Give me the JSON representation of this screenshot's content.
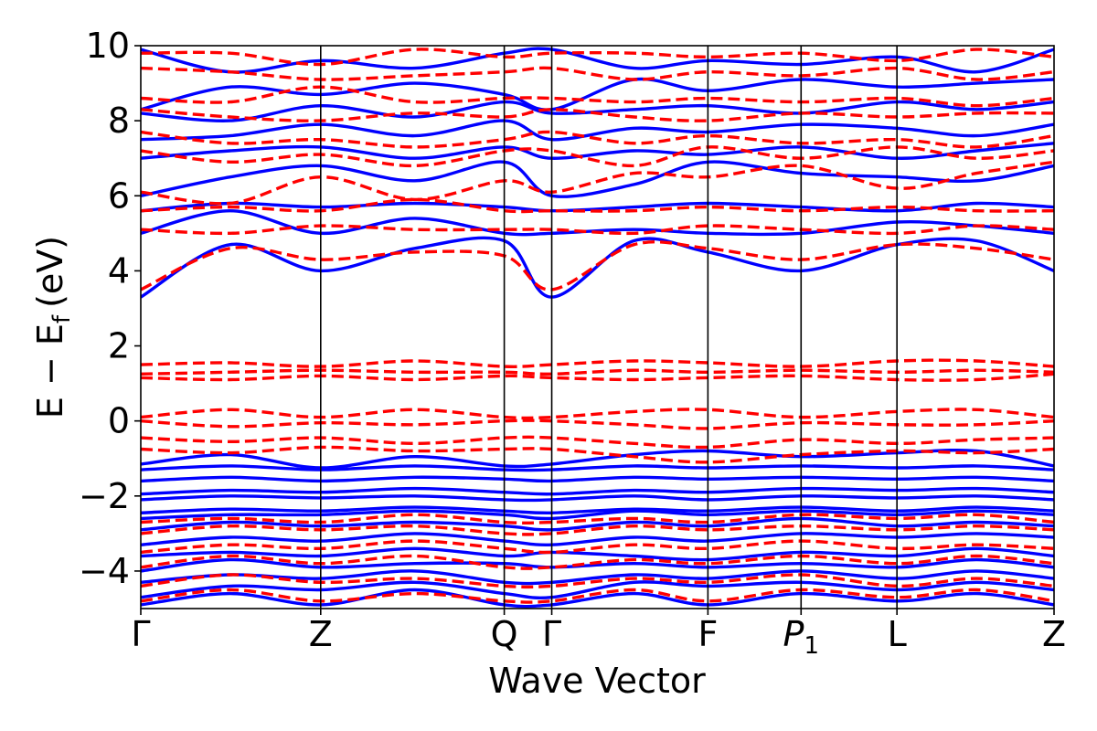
{
  "chart_data": {
    "type": "line",
    "title": "",
    "xlabel": "Wave Vector",
    "ylabel_main": "E − E",
    "ylabel_sub": "f",
    "ylabel_unit": "(eV)",
    "ylim": [
      -5,
      10
    ],
    "yticks": [
      {
        "value": 10,
        "label": "10"
      },
      {
        "value": 8,
        "label": "8"
      },
      {
        "value": 6,
        "label": "6"
      },
      {
        "value": 4,
        "label": "4"
      },
      {
        "value": 2,
        "label": "2"
      },
      {
        "value": 0,
        "label": "0"
      },
      {
        "value": -2,
        "label": "−2"
      },
      {
        "value": -4,
        "label": "−4"
      }
    ],
    "xlim": [
      0,
      1
    ],
    "kpoints": [
      {
        "label": "Γ",
        "sub": "",
        "x": 0.0
      },
      {
        "label": "Z",
        "sub": "",
        "x": 0.197
      },
      {
        "label": "Q",
        "sub": "",
        "x": 0.398
      },
      {
        "label": "Γ",
        "sub": "",
        "x": 0.45
      },
      {
        "label": "F",
        "sub": "",
        "x": 0.621
      },
      {
        "label": "P",
        "sub": "1",
        "x": 0.723
      },
      {
        "label": "L",
        "sub": "",
        "x": 0.828
      },
      {
        "label": "Z",
        "sub": "",
        "x": 1.0
      }
    ],
    "band_nodes": [
      0,
      0.098,
      0.197,
      0.3,
      0.398,
      0.45,
      0.54,
      0.621,
      0.723,
      0.828,
      0.915,
      1.0
    ],
    "grid": false,
    "legend": "none",
    "series": [
      {
        "style": "solid",
        "color": "#0000ff",
        "bands": [
          [
            -4.9,
            -4.6,
            -4.9,
            -4.5,
            -4.9,
            -4.9,
            -4.6,
            -4.9,
            -4.6,
            -4.8,
            -4.6,
            -4.9
          ],
          [
            -4.7,
            -4.4,
            -4.5,
            -4.3,
            -4.6,
            -4.7,
            -4.3,
            -4.4,
            -4.3,
            -4.5,
            -4.3,
            -4.5
          ],
          [
            -4.3,
            -4.1,
            -4.2,
            -4.0,
            -4.3,
            -4.3,
            -4.1,
            -4.2,
            -4.0,
            -4.2,
            -4.0,
            -4.2
          ],
          [
            -4.0,
            -3.7,
            -3.9,
            -3.8,
            -3.8,
            -3.9,
            -3.8,
            -3.9,
            -3.8,
            -3.9,
            -3.7,
            -3.9
          ],
          [
            -3.6,
            -3.5,
            -3.6,
            -3.4,
            -3.6,
            -3.5,
            -3.6,
            -3.7,
            -3.5,
            -3.6,
            -3.4,
            -3.6
          ],
          [
            -3.3,
            -3.1,
            -3.2,
            -3.0,
            -3.2,
            -3.3,
            -3.1,
            -3.2,
            -3.0,
            -3.1,
            -3.0,
            -3.1
          ],
          [
            -2.9,
            -2.7,
            -2.8,
            -2.7,
            -2.8,
            -2.9,
            -2.7,
            -2.8,
            -2.6,
            -2.8,
            -2.7,
            -2.8
          ],
          [
            -2.6,
            -2.5,
            -2.5,
            -2.4,
            -2.5,
            -2.6,
            -2.4,
            -2.5,
            -2.4,
            -2.5,
            -2.4,
            -2.5
          ],
          [
            -2.45,
            -2.35,
            -2.4,
            -2.3,
            -2.4,
            -2.45,
            -2.35,
            -2.4,
            -2.3,
            -2.4,
            -2.3,
            -2.4
          ],
          [
            -2.1,
            -2.0,
            -2.05,
            -2.0,
            -2.1,
            -2.1,
            -2.0,
            -2.1,
            -2.0,
            -2.05,
            -2.0,
            -2.1
          ],
          [
            -1.95,
            -1.85,
            -1.9,
            -1.8,
            -1.9,
            -1.95,
            -1.85,
            -1.9,
            -1.8,
            -1.85,
            -1.8,
            -1.9
          ],
          [
            -1.6,
            -1.5,
            -1.6,
            -1.5,
            -1.55,
            -1.6,
            -1.5,
            -1.55,
            -1.5,
            -1.55,
            -1.5,
            -1.6
          ],
          [
            -1.3,
            -1.2,
            -1.3,
            -1.2,
            -1.3,
            -1.3,
            -1.2,
            -1.25,
            -1.2,
            -1.25,
            -1.2,
            -1.3
          ],
          [
            -1.15,
            -0.9,
            -1.25,
            -0.95,
            -1.2,
            -1.15,
            -0.9,
            -0.8,
            -0.95,
            -0.85,
            -0.8,
            -1.2
          ],
          [
            3.3,
            4.7,
            4.0,
            4.6,
            4.8,
            3.3,
            4.8,
            4.5,
            4.0,
            4.7,
            4.8,
            4.0
          ],
          [
            5.0,
            5.6,
            5.0,
            5.4,
            5.0,
            5.0,
            5.1,
            5.0,
            5.0,
            5.3,
            5.2,
            5.0
          ],
          [
            5.6,
            5.8,
            5.7,
            5.8,
            5.7,
            5.6,
            5.7,
            5.8,
            5.7,
            5.6,
            5.8,
            5.7
          ],
          [
            6.0,
            6.5,
            6.8,
            6.4,
            6.9,
            6.0,
            6.3,
            6.9,
            6.6,
            6.5,
            6.4,
            6.8
          ],
          [
            7.0,
            7.2,
            7.3,
            7.0,
            7.3,
            7.0,
            7.2,
            7.1,
            7.3,
            7.0,
            7.2,
            7.4
          ],
          [
            7.5,
            7.6,
            7.9,
            7.6,
            8.0,
            7.5,
            7.8,
            7.7,
            7.9,
            7.8,
            7.6,
            7.9
          ],
          [
            8.2,
            8.0,
            8.4,
            8.1,
            8.5,
            8.2,
            8.3,
            8.4,
            8.2,
            8.5,
            8.3,
            8.5
          ],
          [
            8.3,
            8.9,
            8.7,
            9.0,
            8.7,
            8.3,
            9.1,
            8.8,
            9.1,
            8.9,
            9.0,
            9.1
          ],
          [
            9.9,
            9.3,
            9.6,
            9.4,
            9.8,
            9.9,
            9.4,
            9.6,
            9.5,
            9.7,
            9.3,
            9.9
          ]
        ]
      },
      {
        "style": "dashed",
        "color": "#ff0000",
        "bands": [
          [
            -4.8,
            -4.5,
            -4.8,
            -4.6,
            -4.8,
            -4.8,
            -4.5,
            -4.8,
            -4.5,
            -4.7,
            -4.5,
            -4.8
          ],
          [
            -4.4,
            -4.1,
            -4.3,
            -4.2,
            -4.4,
            -4.4,
            -4.2,
            -4.3,
            -4.1,
            -4.4,
            -4.2,
            -4.4
          ],
          [
            -3.9,
            -3.6,
            -3.8,
            -3.6,
            -3.9,
            -3.9,
            -3.7,
            -3.8,
            -3.6,
            -3.8,
            -3.6,
            -3.8
          ],
          [
            -3.5,
            -3.3,
            -3.4,
            -3.2,
            -3.4,
            -3.5,
            -3.3,
            -3.4,
            -3.2,
            -3.4,
            -3.3,
            -3.4
          ],
          [
            -3.0,
            -2.8,
            -2.9,
            -2.8,
            -3.0,
            -3.0,
            -2.8,
            -2.9,
            -2.8,
            -2.9,
            -2.8,
            -2.9
          ],
          [
            -2.7,
            -2.6,
            -2.7,
            -2.5,
            -2.7,
            -2.7,
            -2.6,
            -2.7,
            -2.5,
            -2.6,
            -2.5,
            -2.7
          ],
          [
            -0.75,
            -0.85,
            -0.7,
            -0.8,
            -0.75,
            -0.75,
            -0.95,
            -1.1,
            -0.9,
            -0.8,
            -0.85,
            -0.75
          ],
          [
            -0.45,
            -0.55,
            -0.45,
            -0.6,
            -0.45,
            -0.45,
            -0.6,
            -0.7,
            -0.5,
            -0.6,
            -0.5,
            -0.45
          ],
          [
            0.0,
            -0.15,
            -0.05,
            -0.1,
            0.0,
            0.0,
            -0.1,
            -0.2,
            -0.05,
            -0.1,
            -0.1,
            0.0
          ],
          [
            0.1,
            0.3,
            0.1,
            0.3,
            0.1,
            0.1,
            0.25,
            0.3,
            0.1,
            0.25,
            0.3,
            0.1
          ],
          [
            1.15,
            1.1,
            1.2,
            1.1,
            1.2,
            1.15,
            1.1,
            1.15,
            1.2,
            1.1,
            1.1,
            1.25
          ],
          [
            1.25,
            1.3,
            1.35,
            1.3,
            1.3,
            1.25,
            1.35,
            1.3,
            1.35,
            1.3,
            1.35,
            1.3
          ],
          [
            1.5,
            1.55,
            1.45,
            1.6,
            1.45,
            1.5,
            1.6,
            1.55,
            1.45,
            1.6,
            1.6,
            1.45
          ],
          [
            3.5,
            4.6,
            4.3,
            4.5,
            4.4,
            3.5,
            4.7,
            4.6,
            4.3,
            4.7,
            4.6,
            4.3
          ],
          [
            5.1,
            5.0,
            5.2,
            5.1,
            5.1,
            5.1,
            5.0,
            5.2,
            5.1,
            5.0,
            5.2,
            5.1
          ],
          [
            5.6,
            5.7,
            5.6,
            5.9,
            5.6,
            5.6,
            5.6,
            5.7,
            5.6,
            5.7,
            5.6,
            5.6
          ],
          [
            6.1,
            5.8,
            6.5,
            5.9,
            6.4,
            6.1,
            6.6,
            6.5,
            6.8,
            6.2,
            6.6,
            6.9
          ],
          [
            7.2,
            6.9,
            7.1,
            6.8,
            7.2,
            7.2,
            6.8,
            7.3,
            7.0,
            7.3,
            7.0,
            7.2
          ],
          [
            7.7,
            7.4,
            7.5,
            7.3,
            7.5,
            7.7,
            7.4,
            7.6,
            7.4,
            7.5,
            7.3,
            7.6
          ],
          [
            8.3,
            8.1,
            8.0,
            8.2,
            8.1,
            8.3,
            8.1,
            8.0,
            8.2,
            8.1,
            8.2,
            8.2
          ],
          [
            8.6,
            8.5,
            8.9,
            8.5,
            8.6,
            8.6,
            8.5,
            8.6,
            8.5,
            8.6,
            8.4,
            8.6
          ],
          [
            9.4,
            9.3,
            9.1,
            9.2,
            9.3,
            9.4,
            9.1,
            9.3,
            9.2,
            9.4,
            9.1,
            9.3
          ],
          [
            9.8,
            9.8,
            9.5,
            9.9,
            9.7,
            9.8,
            9.8,
            9.7,
            9.8,
            9.6,
            9.9,
            9.7
          ]
        ]
      }
    ]
  }
}
